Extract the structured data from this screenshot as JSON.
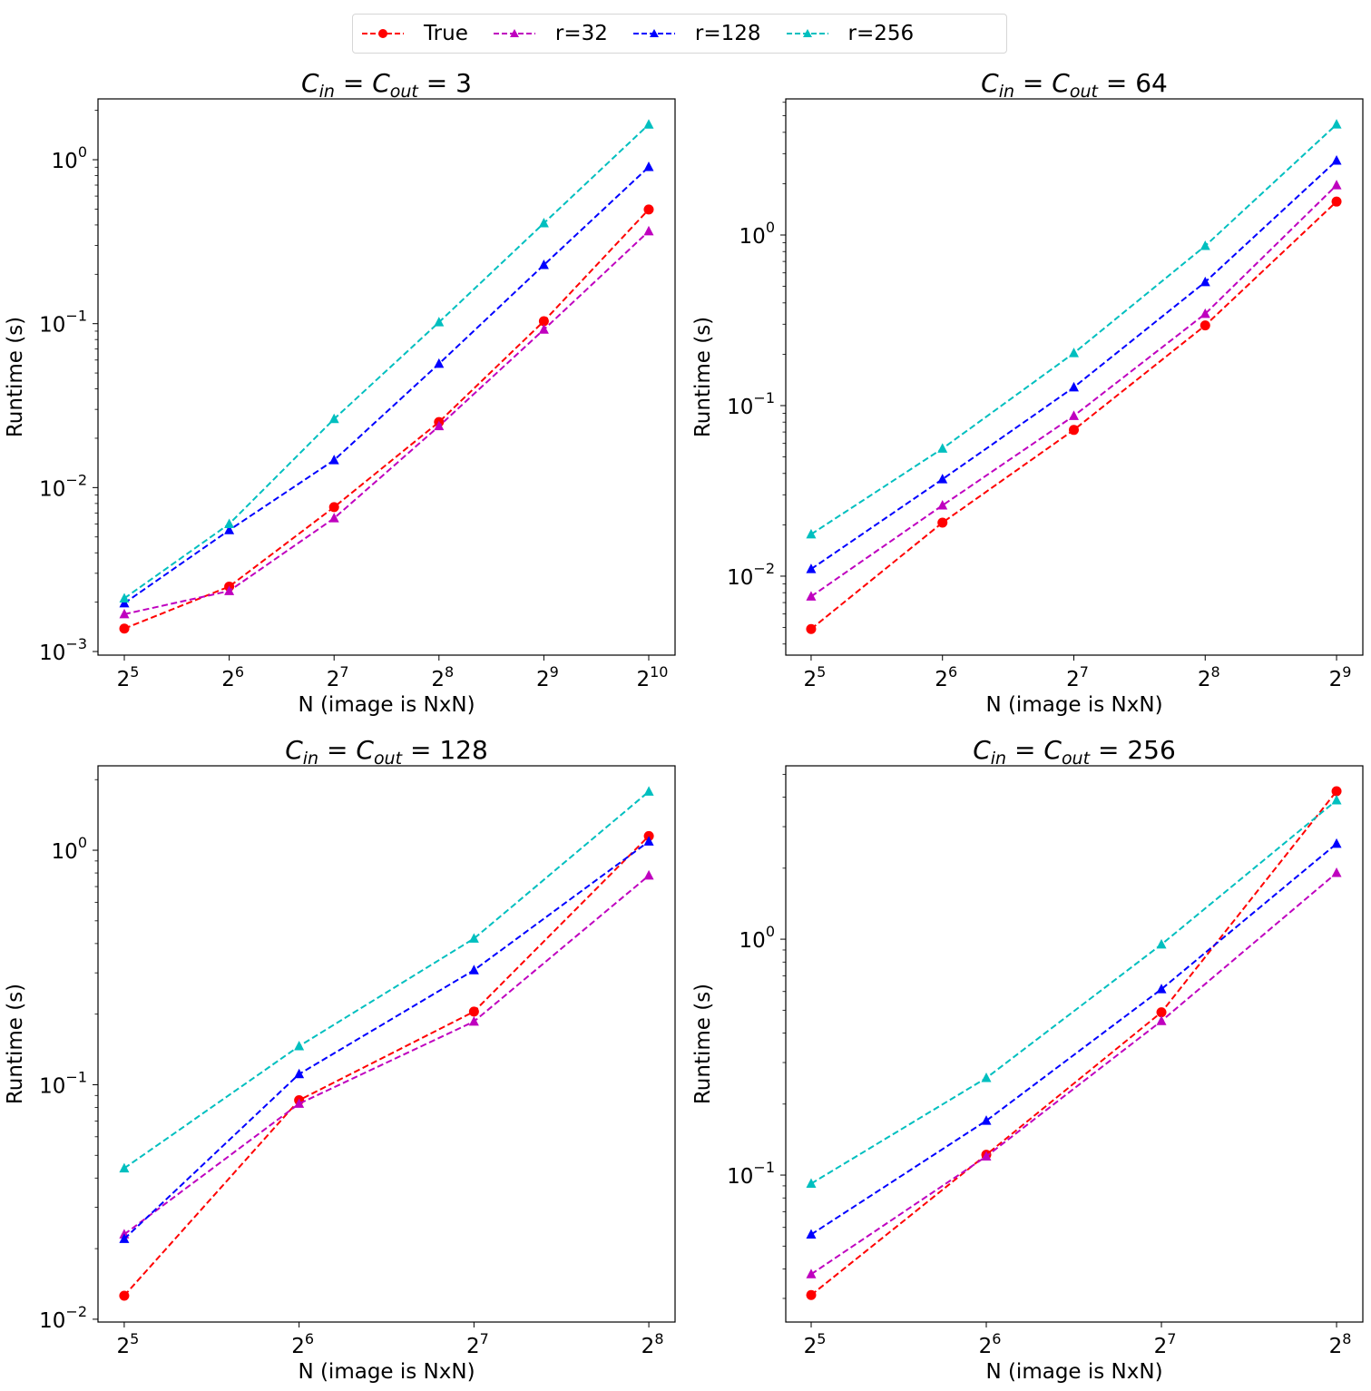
{
  "legend": {
    "position": "top-center",
    "entries": [
      {
        "label": "True",
        "color": "#ff0000",
        "marker": "circle"
      },
      {
        "label": "r=32",
        "color": "#bf00bf",
        "marker": "triangle"
      },
      {
        "label": "r=128",
        "color": "#0000ff",
        "marker": "triangle"
      },
      {
        "label": "r=256",
        "color": "#00bfbf",
        "marker": "triangle"
      }
    ]
  },
  "chart_data": [
    {
      "type": "line",
      "title_parts": {
        "c": "C",
        "in": "in",
        "eq": " = ",
        "out": "out",
        "value": "3"
      },
      "title": "C_in = C_out = 3",
      "xlabel": "N (image is NxN)",
      "ylabel": "Runtime (s)",
      "xscale": "log2",
      "yscale": "log10",
      "x_exponents": [
        5,
        6,
        7,
        8,
        9,
        10
      ],
      "xlim_log2": [
        4.749,
        10.251
      ],
      "ylim_log10": [
        -3.022,
        0.371
      ],
      "y_major_exponents": [
        0,
        -1,
        -2,
        -3
      ],
      "grid": false,
      "series": [
        {
          "name": "True",
          "values": [
            0.00138,
            0.00249,
            0.0076,
            0.0251,
            0.1035,
            0.497
          ]
        },
        {
          "name": "r=32",
          "values": [
            0.00169,
            0.00234,
            0.0065,
            0.0237,
            0.092,
            0.366
          ]
        },
        {
          "name": "r=128",
          "values": [
            0.00197,
            0.0055,
            0.0147,
            0.0569,
            0.228,
            0.903
          ]
        },
        {
          "name": "r=256",
          "values": [
            0.00211,
            0.006,
            0.0262,
            0.102,
            0.41,
            1.64
          ]
        }
      ]
    },
    {
      "type": "line",
      "title_parts": {
        "c": "C",
        "in": "in",
        "eq": " = ",
        "out": "out",
        "value": "64"
      },
      "title": "C_in = C_out = 64",
      "xlabel": "N (image is NxN)",
      "ylabel": "Runtime (s)",
      "xscale": "log2",
      "yscale": "log10",
      "x_exponents": [
        5,
        6,
        7,
        8,
        9
      ],
      "xlim_log2": [
        4.807,
        9.2
      ],
      "ylim_log10": [
        -2.463,
        0.798
      ],
      "y_major_exponents": [
        0,
        -1,
        -2
      ],
      "grid": false,
      "series": [
        {
          "name": "True",
          "values": [
            0.0049,
            0.0206,
            0.072,
            0.295,
            1.57
          ]
        },
        {
          "name": "r=32",
          "values": [
            0.0076,
            0.026,
            0.087,
            0.345,
            1.96
          ]
        },
        {
          "name": "r=128",
          "values": [
            0.011,
            0.037,
            0.128,
            0.53,
            2.73
          ]
        },
        {
          "name": "r=256",
          "values": [
            0.0176,
            0.056,
            0.203,
            0.863,
            4.45
          ]
        }
      ]
    },
    {
      "type": "line",
      "title_parts": {
        "c": "C",
        "in": "in",
        "eq": " = ",
        "out": "out",
        "value": "128"
      },
      "title": "C_in = C_out = 128",
      "xlabel": "N (image is NxN)",
      "ylabel": "Runtime (s)",
      "xscale": "log2",
      "yscale": "log10",
      "x_exponents": [
        5,
        6,
        7,
        8
      ],
      "xlim_log2": [
        4.85,
        8.15
      ],
      "ylim_log10": [
        -2.012,
        0.36
      ],
      "y_major_exponents": [
        0,
        -1,
        -2
      ],
      "grid": false,
      "series": [
        {
          "name": "True",
          "values": [
            0.0126,
            0.0859,
            0.205,
            1.15
          ]
        },
        {
          "name": "r=32",
          "values": [
            0.023,
            0.083,
            0.186,
            0.78
          ]
        },
        {
          "name": "r=128",
          "values": [
            0.022,
            0.111,
            0.308,
            1.09
          ]
        },
        {
          "name": "r=256",
          "values": [
            0.044,
            0.146,
            0.42,
            1.78
          ]
        }
      ]
    },
    {
      "type": "line",
      "title_parts": {
        "c": "C",
        "in": "in",
        "eq": " = ",
        "out": "out",
        "value": "256"
      },
      "title": "C_in = C_out = 256",
      "xlabel": "N (image is NxN)",
      "ylabel": "Runtime (s)",
      "xscale": "log2",
      "yscale": "log10",
      "x_exponents": [
        5,
        6,
        7,
        8
      ],
      "xlim_log2": [
        4.855,
        8.15
      ],
      "ylim_log10": [
        -1.623,
        0.735
      ],
      "y_major_exponents": [
        0,
        -1
      ],
      "grid": false,
      "series": [
        {
          "name": "True",
          "values": [
            0.031,
            0.122,
            0.49,
            4.24
          ]
        },
        {
          "name": "r=32",
          "values": [
            0.038,
            0.12,
            0.45,
            1.91
          ]
        },
        {
          "name": "r=128",
          "values": [
            0.056,
            0.17,
            0.614,
            2.54
          ]
        },
        {
          "name": "r=256",
          "values": [
            0.092,
            0.258,
            0.95,
            3.88
          ]
        }
      ]
    }
  ]
}
